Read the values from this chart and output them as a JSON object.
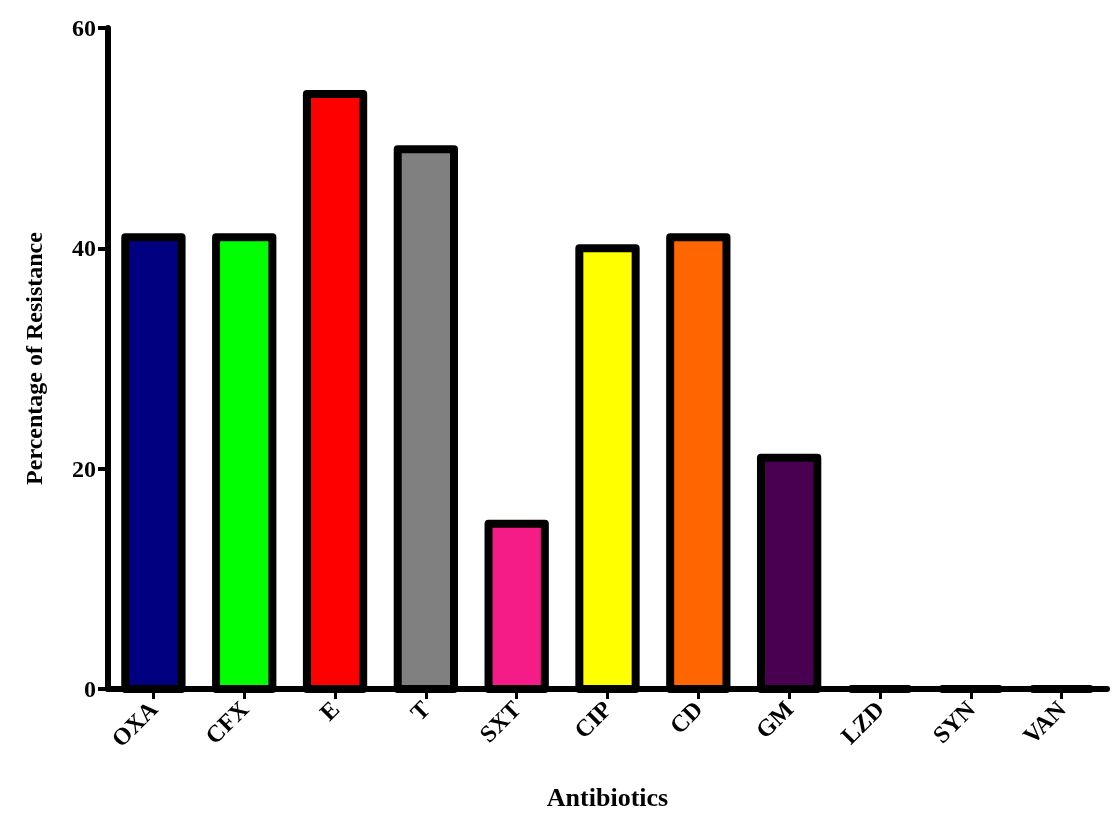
{
  "chart_data": {
    "type": "bar",
    "xlabel": "Antibiotics",
    "ylabel": "Percentage of Resistance",
    "categories": [
      "OXA",
      "CFX",
      "E",
      "T",
      "SXT",
      "CIP",
      "CD",
      "GM",
      "LZD",
      "SYN",
      "VAN"
    ],
    "values": [
      41,
      41,
      54,
      49,
      15,
      40,
      41,
      21,
      0,
      0,
      0
    ],
    "colors": [
      "#000080",
      "#00ff00",
      "#ff0000",
      "#808080",
      "#f51c87",
      "#ffff00",
      "#ff6600",
      "#4a0050",
      "#000000",
      "#000000",
      "#000000"
    ],
    "ylim": [
      0,
      60
    ],
    "yticks": [
      0,
      20,
      40,
      60
    ],
    "grid": false
  }
}
